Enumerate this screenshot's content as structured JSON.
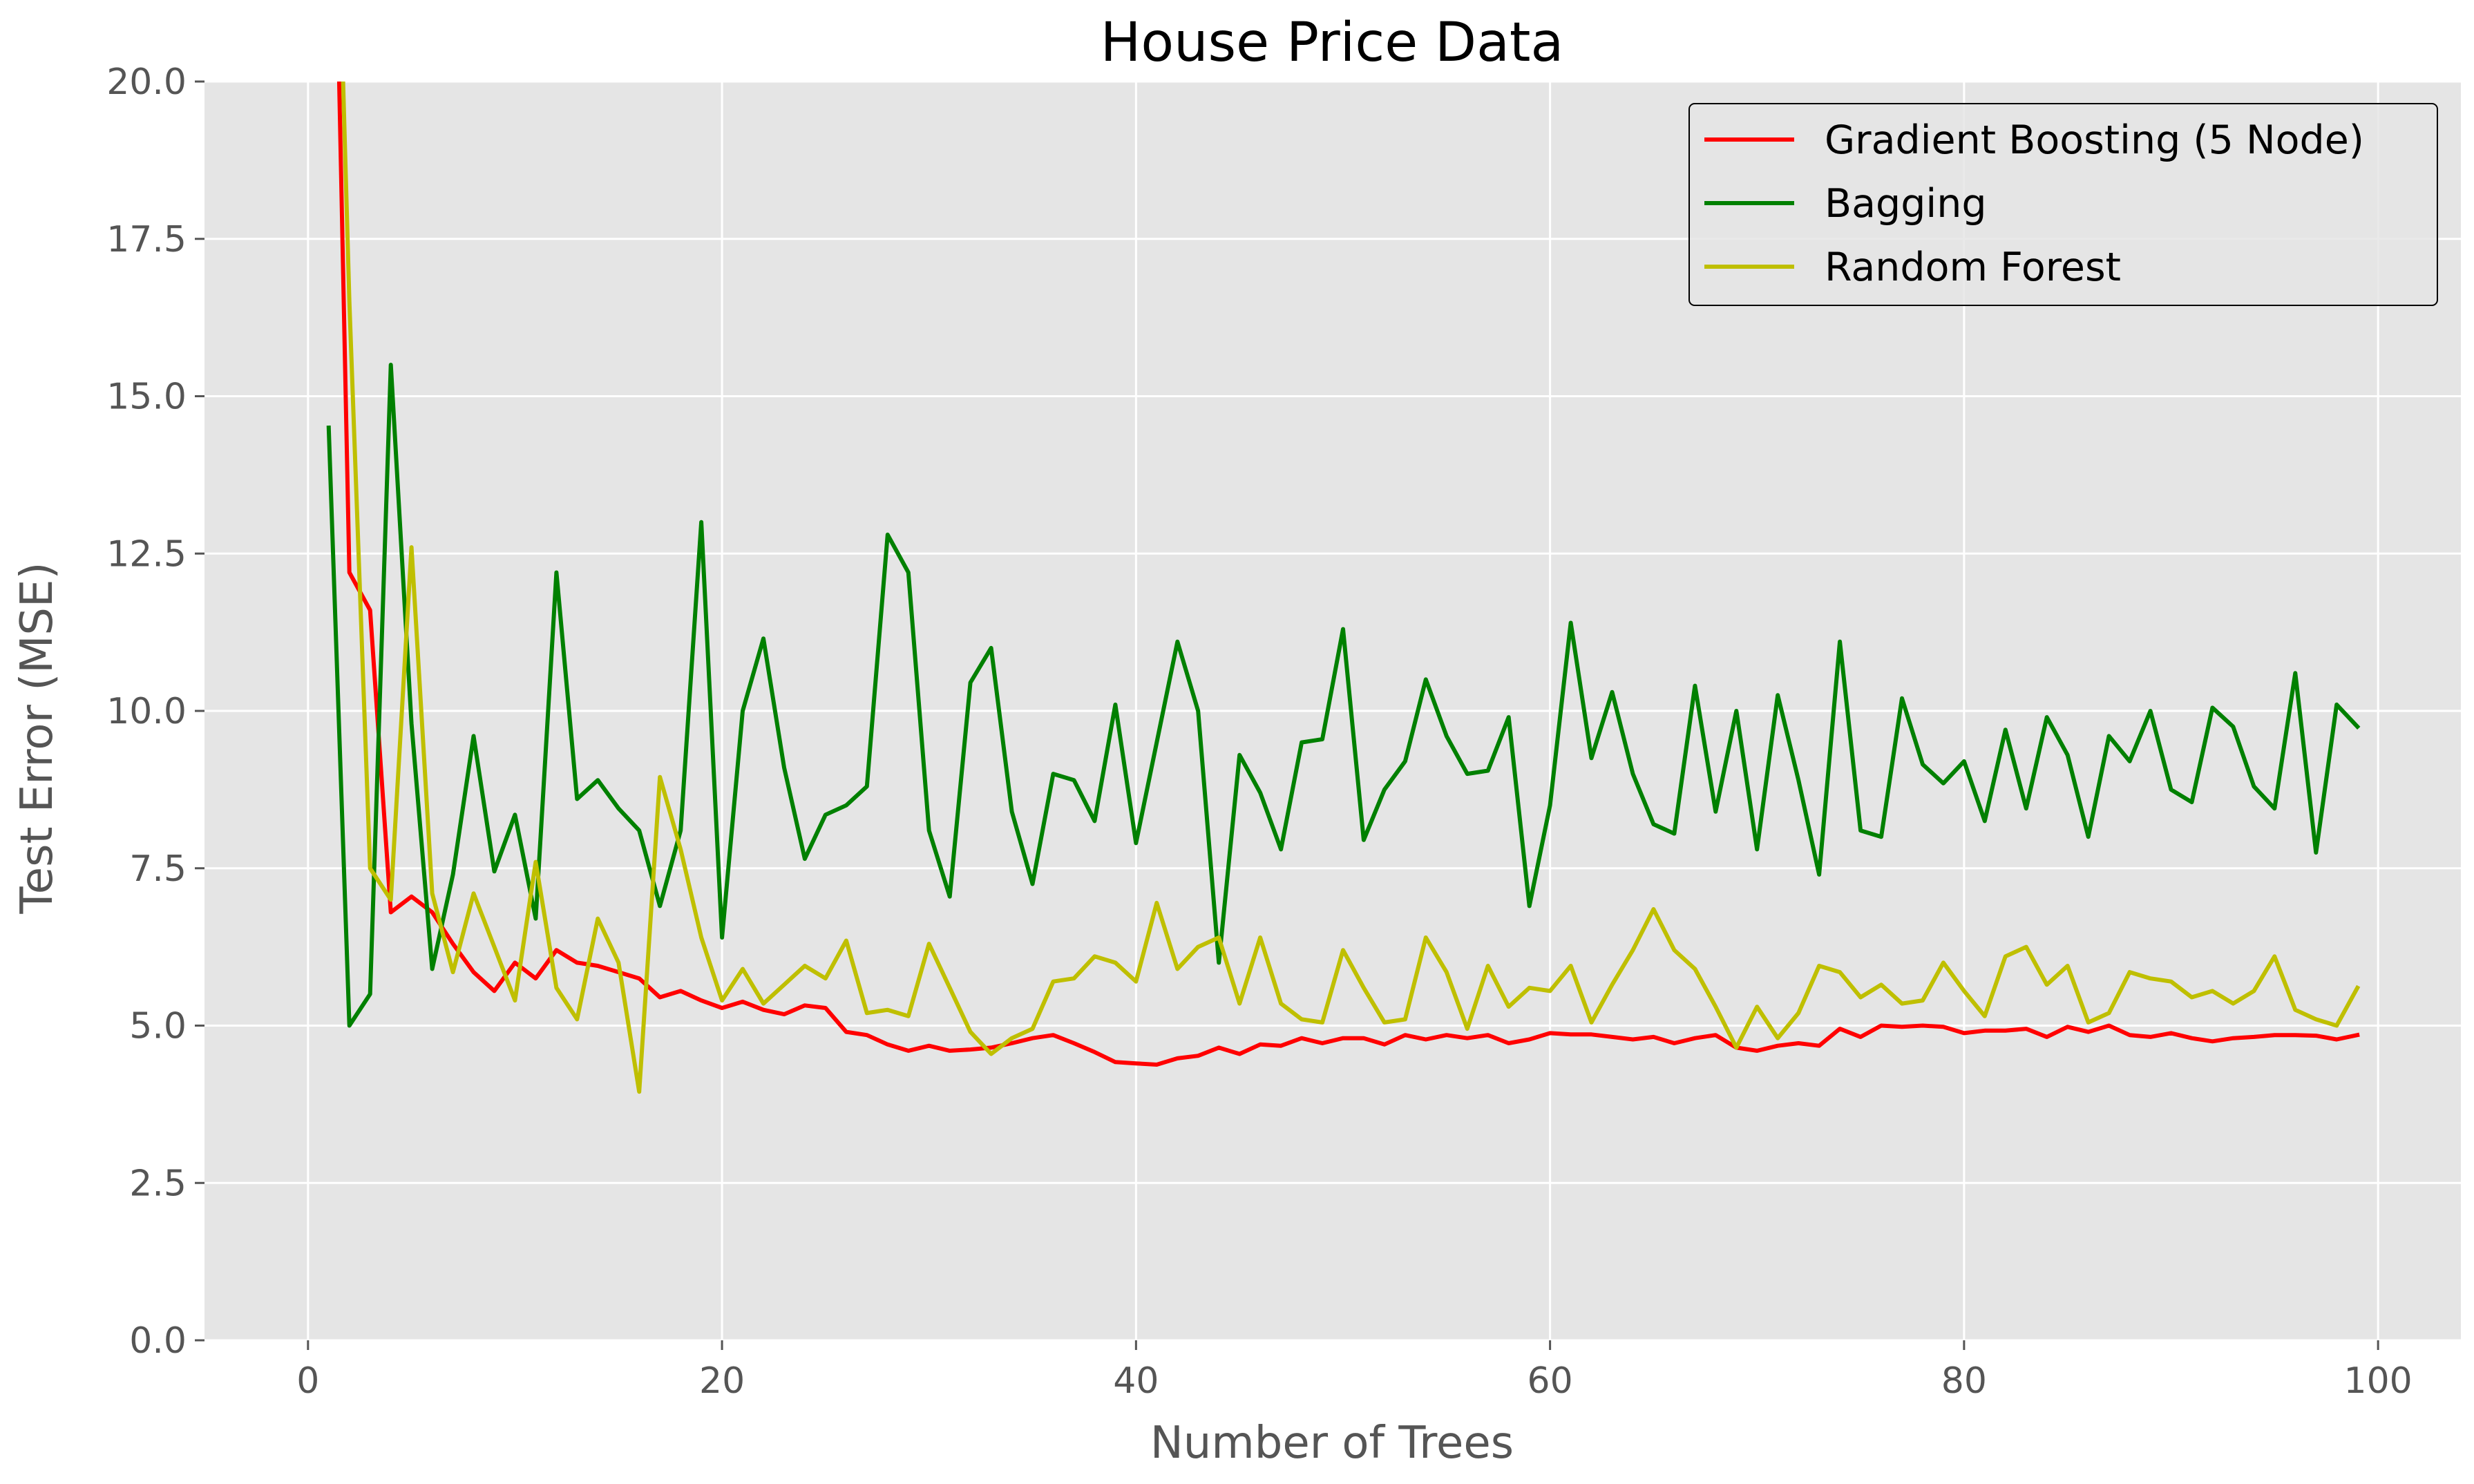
{
  "chart_data": {
    "type": "line",
    "title": "House Price Data",
    "xlabel": "Number of Trees",
    "ylabel": "Test Error (MSE)",
    "xlim": [
      -5,
      104
    ],
    "ylim": [
      0,
      20
    ],
    "xticks": [
      0,
      20,
      40,
      60,
      80,
      100
    ],
    "yticks": [
      0.0,
      2.5,
      5.0,
      7.5,
      10.0,
      12.5,
      15.0,
      17.5,
      20.0
    ],
    "ytick_labels": [
      "0.0",
      "2.5",
      "5.0",
      "7.5",
      "10.0",
      "12.5",
      "15.0",
      "17.5",
      "20.0"
    ],
    "grid": true,
    "legend_position": "top-right",
    "background": "#e5e5e5",
    "x": [
      1,
      2,
      3,
      4,
      5,
      6,
      7,
      8,
      9,
      10,
      11,
      12,
      13,
      14,
      15,
      16,
      17,
      18,
      19,
      20,
      21,
      22,
      23,
      24,
      25,
      26,
      27,
      28,
      29,
      30,
      31,
      32,
      33,
      34,
      35,
      36,
      37,
      38,
      39,
      40,
      41,
      42,
      43,
      44,
      45,
      46,
      47,
      48,
      49,
      50,
      51,
      52,
      53,
      54,
      55,
      56,
      57,
      58,
      59,
      60,
      61,
      62,
      63,
      64,
      65,
      66,
      67,
      68,
      69,
      70,
      71,
      72,
      73,
      74,
      75,
      76,
      77,
      78,
      79,
      80,
      81,
      82,
      83,
      84,
      85,
      86,
      87,
      88,
      89,
      90,
      91,
      92,
      93,
      94,
      95,
      96,
      97,
      98,
      99
    ],
    "series": [
      {
        "name": "Gradient Boosting (5 Node)",
        "color": "#ff0000",
        "values": [
          28.0,
          12.2,
          11.6,
          6.8,
          7.05,
          6.8,
          6.3,
          5.85,
          5.55,
          6.0,
          5.75,
          6.2,
          6.0,
          5.95,
          5.85,
          5.75,
          5.45,
          5.55,
          5.4,
          5.28,
          5.38,
          5.25,
          5.18,
          5.32,
          5.28,
          4.9,
          4.85,
          4.7,
          4.6,
          4.68,
          4.6,
          4.62,
          4.65,
          4.72,
          4.8,
          4.85,
          4.72,
          4.58,
          4.42,
          4.4,
          4.38,
          4.48,
          4.52,
          4.65,
          4.55,
          4.7,
          4.68,
          4.8,
          4.72,
          4.8,
          4.8,
          4.7,
          4.85,
          4.78,
          4.85,
          4.8,
          4.85,
          4.72,
          4.78,
          4.88,
          4.86,
          4.86,
          4.82,
          4.78,
          4.82,
          4.72,
          4.8,
          4.85,
          4.65,
          4.6,
          4.68,
          4.72,
          4.68,
          4.95,
          4.82,
          5.0,
          4.98,
          5.0,
          4.98,
          4.88,
          4.92,
          4.92,
          4.95,
          4.82,
          4.98,
          4.9,
          5.0,
          4.85,
          4.82,
          4.88,
          4.8,
          4.75,
          4.8,
          4.82,
          4.85,
          4.85,
          4.84,
          4.78,
          4.85
        ]
      },
      {
        "name": "Bagging",
        "color": "#008000",
        "values": [
          14.5,
          5.0,
          5.5,
          15.5,
          9.8,
          5.9,
          7.4,
          9.6,
          7.45,
          8.35,
          6.7,
          12.2,
          8.6,
          8.9,
          8.45,
          8.1,
          6.9,
          8.1,
          13.0,
          6.4,
          10.0,
          11.15,
          9.1,
          7.65,
          8.35,
          8.5,
          8.8,
          12.8,
          12.2,
          8.1,
          7.05,
          10.45,
          11.0,
          8.4,
          7.25,
          9.0,
          8.9,
          8.25,
          10.1,
          7.9,
          9.5,
          11.1,
          10.0,
          6.0,
          9.3,
          8.7,
          7.8,
          9.5,
          9.55,
          11.3,
          7.95,
          8.75,
          9.2,
          10.5,
          9.6,
          9.0,
          9.05,
          9.9,
          6.9,
          8.5,
          11.4,
          9.25,
          10.3,
          9.0,
          8.2,
          8.05,
          10.4,
          8.4,
          10.0,
          7.8,
          10.25,
          8.9,
          7.4,
          11.1,
          8.1,
          8.0,
          10.2,
          9.15,
          8.85,
          9.2,
          8.25,
          9.7,
          8.45,
          9.9,
          9.3,
          8.0,
          9.6,
          9.2,
          10.0,
          8.75,
          8.55,
          10.05,
          9.75,
          8.8,
          8.45,
          10.6,
          7.75,
          10.1,
          9.75
        ]
      },
      {
        "name": "Random Forest",
        "color": "#bfbf00",
        "values": [
          28.0,
          16.5,
          7.5,
          7.0,
          12.6,
          7.1,
          5.85,
          7.1,
          6.25,
          5.4,
          7.6,
          5.6,
          5.1,
          6.7,
          6.0,
          3.95,
          8.95,
          7.8,
          6.4,
          5.4,
          5.9,
          5.35,
          5.65,
          5.95,
          5.75,
          6.35,
          5.2,
          5.25,
          5.15,
          6.3,
          5.6,
          4.9,
          4.55,
          4.8,
          4.95,
          5.7,
          5.75,
          6.1,
          6.0,
          5.7,
          6.95,
          5.9,
          6.25,
          6.4,
          5.35,
          6.4,
          5.35,
          5.1,
          5.05,
          6.2,
          5.6,
          5.05,
          5.1,
          6.4,
          5.85,
          4.95,
          5.95,
          5.3,
          5.6,
          5.55,
          5.95,
          5.05,
          5.65,
          6.2,
          6.85,
          6.2,
          5.9,
          5.3,
          4.65,
          5.3,
          4.8,
          5.2,
          5.95,
          5.85,
          5.45,
          5.65,
          5.35,
          5.4,
          6.0,
          5.55,
          5.15,
          6.1,
          6.25,
          5.65,
          5.95,
          5.05,
          5.2,
          5.85,
          5.75,
          5.7,
          5.45,
          5.55,
          5.35,
          5.55,
          6.1,
          5.25,
          5.1,
          5.0,
          5.6
        ]
      }
    ]
  }
}
